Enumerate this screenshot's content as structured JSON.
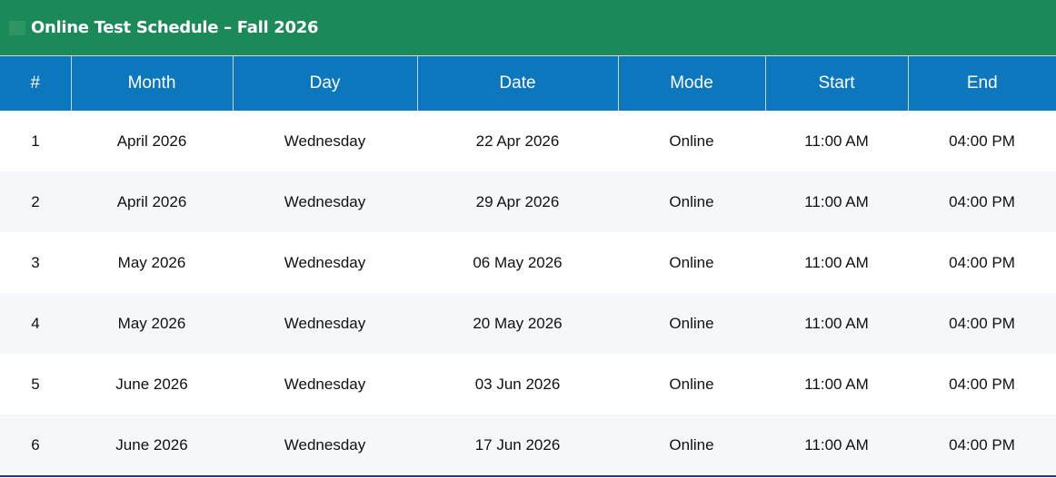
{
  "title": "Online Test Schedule – Fall 2026",
  "colors": {
    "title_bar": "#1b8a58",
    "header": "#0d77bd",
    "alt_row": "#f6f7fb",
    "bottom_border": "#1f3a6e"
  },
  "columns": [
    "#",
    "Month",
    "Day",
    "Date",
    "Mode",
    "Start",
    "End"
  ],
  "rows": [
    [
      "1",
      "April 2026",
      "Wednesday",
      "22 Apr 2026",
      "Online",
      "11:00 AM",
      "04:00 PM"
    ],
    [
      "2",
      "April 2026",
      "Wednesday",
      "29 Apr 2026",
      "Online",
      "11:00 AM",
      "04:00 PM"
    ],
    [
      "3",
      "May 2026",
      "Wednesday",
      "06 May 2026",
      "Online",
      "11:00 AM",
      "04:00 PM"
    ],
    [
      "4",
      "May 2026",
      "Wednesday",
      "20 May 2026",
      "Online",
      "11:00 AM",
      "04:00 PM"
    ],
    [
      "5",
      "June 2026",
      "Wednesday",
      "03 Jun 2026",
      "Online",
      "11:00 AM",
      "04:00 PM"
    ],
    [
      "6",
      "June 2026",
      "Wednesday",
      "17 Jun 2026",
      "Online",
      "11:00 AM",
      "04:00 PM"
    ]
  ]
}
